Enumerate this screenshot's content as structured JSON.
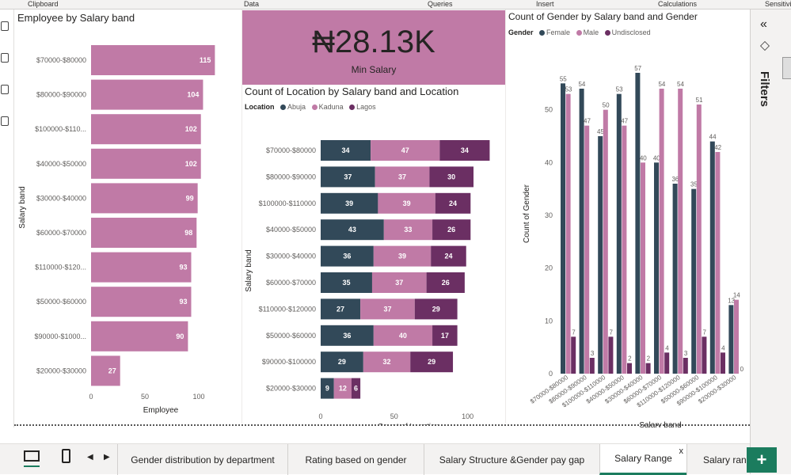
{
  "ribbon": {
    "groups": [
      "Clipboard",
      "Data",
      "Queries",
      "Insert",
      "Calculations",
      "Sensitivi"
    ]
  },
  "colors": {
    "pink": "#c07aa6",
    "abuja": "#324959",
    "kaduna": "#c07aa6",
    "lagos": "#6b2f63",
    "female": "#324959",
    "male": "#c07aa6",
    "undisclosed": "#6b2f63",
    "accent": "#1b7c5e"
  },
  "card": {
    "value": "₦28.13K",
    "label": "Min Salary"
  },
  "filters": {
    "label": "Filters",
    "collapse_icon": "double-chevron-left-icon"
  },
  "tabs": {
    "items": [
      "Gender distribution by department",
      "Rating based on gender",
      "Salary Structure &Gender pay gap",
      "Salary Range",
      "Salary rang"
    ],
    "close": "x",
    "add": "+"
  },
  "chart_data": [
    {
      "type": "bar",
      "title": "Employee by Salary band",
      "orientation": "horizontal",
      "categories": [
        "$70000-$80000",
        "$80000-$90000",
        "$100000-$110...",
        "$40000-$50000",
        "$30000-$40000",
        "$60000-$70000",
        "$110000-$120...",
        "$50000-$60000",
        "$90000-$1000...",
        "$20000-$30000"
      ],
      "values": [
        115,
        104,
        102,
        102,
        99,
        98,
        93,
        93,
        90,
        27
      ],
      "xlabel": "Employee",
      "ylabel": "Salary band",
      "xlim": [
        0,
        125
      ],
      "xticks": [
        0,
        50,
        100
      ]
    },
    {
      "type": "bar",
      "stacked": true,
      "orientation": "horizontal",
      "title": "Count of Location by Salary band and Location",
      "legend_title": "Location",
      "categories": [
        "$70000-$80000",
        "$80000-$90000",
        "$100000-$110000",
        "$40000-$50000",
        "$30000-$40000",
        "$60000-$70000",
        "$110000-$120000",
        "$50000-$60000",
        "$90000-$100000",
        "$20000-$30000"
      ],
      "series": [
        {
          "name": "Abuja",
          "values": [
            34,
            37,
            39,
            43,
            36,
            35,
            27,
            36,
            29,
            9
          ]
        },
        {
          "name": "Kaduna",
          "values": [
            47,
            37,
            39,
            33,
            39,
            37,
            37,
            40,
            32,
            12
          ]
        },
        {
          "name": "Lagos",
          "values": [
            34,
            30,
            24,
            26,
            24,
            26,
            29,
            17,
            29,
            6
          ]
        }
      ],
      "xlabel": "Count of Location",
      "ylabel": "Salary band",
      "xlim": [
        0,
        125
      ],
      "xticks": [
        0,
        50,
        100
      ]
    },
    {
      "type": "bar",
      "orientation": "vertical",
      "title": "Count of Gender by Salary band and Gender",
      "legend_title": "Gender",
      "categories": [
        "$70000-$80000",
        "$80000-$90000",
        "$100000-$110000",
        "$40000-$50000",
        "$30000-$40000",
        "$60000-$70000",
        "$110000-$120000",
        "$50000-$60000",
        "$90000-$100000",
        "$20000-$30000"
      ],
      "series": [
        {
          "name": "Female",
          "values": [
            55,
            54,
            45,
            53,
            57,
            40,
            36,
            35,
            44,
            13
          ]
        },
        {
          "name": "Male",
          "values": [
            53,
            47,
            50,
            47,
            40,
            54,
            54,
            51,
            42,
            14
          ]
        },
        {
          "name": "Undisclosed",
          "values": [
            7,
            3,
            7,
            2,
            2,
            4,
            3,
            7,
            4,
            0
          ]
        }
      ],
      "xlabel": "Salary band",
      "ylabel": "Count of Gender",
      "ylim": [
        0,
        60
      ],
      "yticks": [
        0,
        10,
        20,
        30,
        40,
        50
      ]
    }
  ]
}
